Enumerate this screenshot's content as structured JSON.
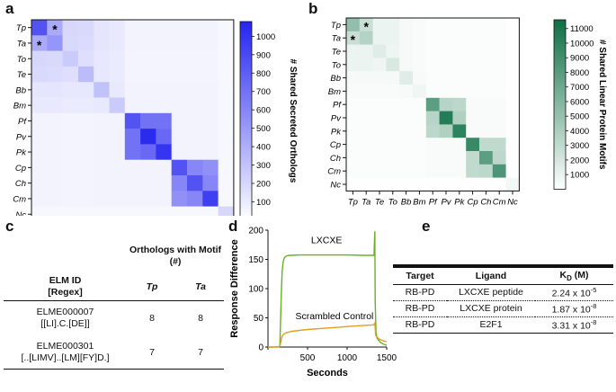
{
  "panel_labels": {
    "a": "a",
    "b": "b",
    "c": "c",
    "d": "d",
    "e": "e"
  },
  "colors": {
    "heatmap_a": "#2525f0",
    "heatmap_b": "#0d6f45",
    "lxcxe_line": "#6ab023",
    "control_line": "#e0a020",
    "rule": "#111111"
  },
  "chart_data": [
    {
      "type": "heatmap",
      "panel": "a",
      "species": [
        "Tp",
        "Ta",
        "To",
        "Te",
        "Bb",
        "Bm",
        "Pf",
        "Pv",
        "Pk",
        "Cp",
        "Ch",
        "Cm",
        "Nc"
      ],
      "values": [
        [
          850,
          420,
          200,
          190,
          130,
          110,
          60,
          60,
          60,
          60,
          60,
          60,
          40
        ],
        [
          420,
          520,
          190,
          180,
          130,
          110,
          60,
          60,
          60,
          60,
          60,
          60,
          40
        ],
        [
          200,
          190,
          260,
          160,
          120,
          100,
          55,
          55,
          55,
          55,
          55,
          55,
          40
        ],
        [
          190,
          180,
          160,
          330,
          120,
          100,
          55,
          55,
          55,
          55,
          55,
          55,
          40
        ],
        [
          130,
          130,
          120,
          120,
          300,
          110,
          60,
          60,
          60,
          60,
          60,
          60,
          40
        ],
        [
          110,
          110,
          100,
          100,
          110,
          260,
          60,
          60,
          60,
          60,
          60,
          60,
          40
        ],
        [
          60,
          60,
          55,
          55,
          60,
          60,
          850,
          700,
          700,
          60,
          60,
          60,
          40
        ],
        [
          60,
          60,
          55,
          55,
          60,
          60,
          700,
          1050,
          750,
          60,
          60,
          60,
          40
        ],
        [
          60,
          60,
          55,
          55,
          60,
          60,
          700,
          750,
          1000,
          60,
          60,
          60,
          40
        ],
        [
          60,
          60,
          55,
          55,
          60,
          60,
          60,
          60,
          60,
          850,
          600,
          550,
          40
        ],
        [
          60,
          60,
          55,
          55,
          60,
          60,
          60,
          60,
          60,
          600,
          850,
          600,
          40
        ],
        [
          60,
          60,
          55,
          55,
          60,
          60,
          60,
          60,
          60,
          550,
          600,
          950,
          40
        ],
        [
          40,
          40,
          40,
          40,
          40,
          40,
          40,
          40,
          40,
          40,
          40,
          40,
          200
        ]
      ],
      "colorbar": {
        "label": "# Shared Secreted Orthologs",
        "ticks": [
          100,
          200,
          300,
          400,
          500,
          600,
          700,
          800,
          900,
          1000
        ],
        "range": [
          0,
          1080
        ]
      },
      "annotations": [
        {
          "row": "Tp",
          "col": "Ta",
          "text": "*"
        },
        {
          "row": "Ta",
          "col": "Tp",
          "text": "*"
        }
      ]
    },
    {
      "type": "heatmap",
      "panel": "b",
      "species": [
        "Tp",
        "Ta",
        "Te",
        "To",
        "Bb",
        "Bm",
        "Pf",
        "Pv",
        "Pk",
        "Cp",
        "Ch",
        "Cm",
        "Nc"
      ],
      "values": [
        [
          5200,
          2600,
          900,
          900,
          500,
          300,
          200,
          200,
          200,
          200,
          200,
          200,
          100
        ],
        [
          2600,
          3600,
          900,
          900,
          500,
          300,
          200,
          200,
          200,
          200,
          200,
          200,
          100
        ],
        [
          900,
          900,
          1500,
          800,
          500,
          300,
          200,
          200,
          200,
          200,
          200,
          200,
          100
        ],
        [
          900,
          900,
          800,
          1800,
          500,
          300,
          200,
          200,
          200,
          200,
          200,
          200,
          100
        ],
        [
          500,
          500,
          500,
          500,
          1500,
          400,
          200,
          200,
          200,
          200,
          200,
          200,
          100
        ],
        [
          300,
          300,
          300,
          300,
          400,
          700,
          200,
          200,
          200,
          200,
          200,
          200,
          100
        ],
        [
          200,
          200,
          200,
          200,
          200,
          200,
          7800,
          3500,
          3200,
          300,
          300,
          300,
          100
        ],
        [
          200,
          200,
          200,
          200,
          200,
          200,
          3500,
          10500,
          3800,
          300,
          300,
          300,
          100
        ],
        [
          200,
          200,
          200,
          200,
          200,
          200,
          3200,
          3800,
          10000,
          300,
          300,
          300,
          100
        ],
        [
          200,
          200,
          200,
          200,
          200,
          200,
          300,
          300,
          300,
          9500,
          3000,
          3000,
          100
        ],
        [
          200,
          200,
          200,
          200,
          200,
          200,
          300,
          300,
          300,
          3000,
          7800,
          3200,
          100
        ],
        [
          200,
          200,
          200,
          200,
          200,
          200,
          300,
          300,
          300,
          3000,
          3200,
          8500,
          100
        ],
        [
          100,
          100,
          100,
          100,
          100,
          100,
          100,
          100,
          100,
          100,
          100,
          100,
          600
        ]
      ],
      "colorbar": {
        "label": "# Shared Linear Protein Motifs",
        "ticks": [
          1000,
          2000,
          3000,
          4000,
          5000,
          6000,
          7000,
          8000,
          9000,
          10000,
          11000
        ],
        "range": [
          0,
          11600
        ]
      },
      "annotations": [
        {
          "row": "Tp",
          "col": "Ta",
          "text": "*"
        },
        {
          "row": "Ta",
          "col": "Tp",
          "text": "*"
        }
      ]
    },
    {
      "type": "line",
      "panel": "d",
      "xlabel": "Seconds",
      "ylabel": "Response Difference",
      "xlim": [
        0,
        1500
      ],
      "ylim": [
        0,
        200
      ],
      "xticks": [
        0,
        500,
        1000,
        1500
      ],
      "xticks_labels": [
        "500",
        "1000",
        "1500"
      ],
      "yticks": [
        0,
        50,
        100,
        150,
        200
      ],
      "series": [
        {
          "name": "LXCXE",
          "color": "#6ab023",
          "x": [
            0,
            40,
            80,
            120,
            150,
            170,
            180,
            190,
            200,
            210,
            220,
            240,
            260,
            300,
            400,
            600,
            800,
            1000,
            1200,
            1340,
            1350,
            1355,
            1365,
            1380,
            1420,
            1460,
            1500
          ],
          "y": [
            0,
            0,
            0,
            0,
            2,
            100,
            130,
            144,
            150,
            153,
            155,
            156,
            157,
            157,
            157.5,
            157.5,
            157.5,
            157.5,
            157,
            157,
            198,
            80,
            25,
            15,
            8,
            5,
            3
          ]
        },
        {
          "name": "Scrambled Control",
          "color": "#e0a020",
          "x": [
            0,
            60,
            120,
            150,
            165,
            175,
            190,
            220,
            300,
            500,
            700,
            900,
            1100,
            1340,
            1350,
            1360,
            1400,
            1450,
            1500
          ],
          "y": [
            0,
            0,
            0,
            1,
            10,
            17,
            21,
            24,
            27,
            30,
            32,
            34,
            36,
            38,
            42,
            20,
            14,
            11,
            9
          ]
        }
      ],
      "annotations": [
        "LXCXE",
        "Scrambled Control"
      ]
    }
  ],
  "table_c": {
    "super_header": "Orthologs with Motif (#)",
    "col_id": "ELM ID",
    "col_regex": "[Regex]",
    "col_tp": "Tp",
    "col_ta": "Ta",
    "rows": [
      {
        "id": "ELME000007",
        "regex": "[[LI].C.[DE]]",
        "tp": "8",
        "ta": "8"
      },
      {
        "id": "ELME000301",
        "regex": "[..[LIMV]..[LM][FY]D.]",
        "tp": "7",
        "ta": "7"
      }
    ]
  },
  "table_e": {
    "headers": {
      "target": "Target",
      "ligand": "Ligand",
      "kd_main": "K",
      "kd_sub": "D",
      "kd_unit": " (M)"
    },
    "rows": [
      {
        "target": "RB-PD",
        "ligand": "LXCXE peptide",
        "kd_mant": "2.24 x 10",
        "kd_exp": "-5"
      },
      {
        "target": "RB-PD",
        "ligand": "LXCXE protein",
        "kd_mant": "1.87 x 10",
        "kd_exp": "-8"
      },
      {
        "target": "RB-PD",
        "ligand": "E2F1",
        "kd_mant": "3.31 x 10",
        "kd_exp": "-8"
      }
    ]
  }
}
